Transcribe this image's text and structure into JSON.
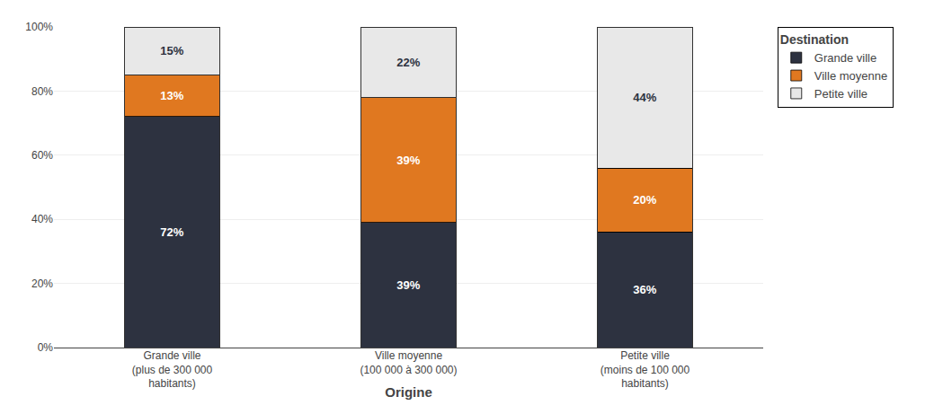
{
  "chart_data": {
    "type": "bar",
    "stacked": true,
    "data_labels": true,
    "grid": true,
    "legend": "upper right",
    "legend_title": "Destination",
    "xlabel": "Origine",
    "categories": [
      "Grande ville\n(plus de 300 000\nhabitants)",
      "Ville moyenne\n(100 000 à 300 000)",
      "Petite ville\n(moins de 100 000\nhabitants)"
    ],
    "series": [
      {
        "name": "Grande ville",
        "color": "#2d3240",
        "values": [
          72,
          39,
          36
        ],
        "value_labels": [
          "72%",
          "39%",
          "36%"
        ]
      },
      {
        "name": "Ville moyenne",
        "color": "#e07820",
        "values": [
          13,
          39,
          20
        ],
        "value_labels": [
          "13%",
          "39%",
          "20%"
        ]
      },
      {
        "name": "Petite ville",
        "color": "#e8e8e8",
        "values": [
          15,
          22,
          44
        ],
        "value_labels": [
          "15%",
          "22%",
          "44%"
        ]
      }
    ],
    "ylim": [
      0,
      100
    ],
    "yticks": [
      {
        "value": 0,
        "label": "0%"
      },
      {
        "value": 20,
        "label": "20%"
      },
      {
        "value": 40,
        "label": "40%"
      },
      {
        "value": 60,
        "label": "60%"
      },
      {
        "value": 80,
        "label": "80%"
      },
      {
        "value": 100,
        "label": "100%"
      }
    ]
  }
}
